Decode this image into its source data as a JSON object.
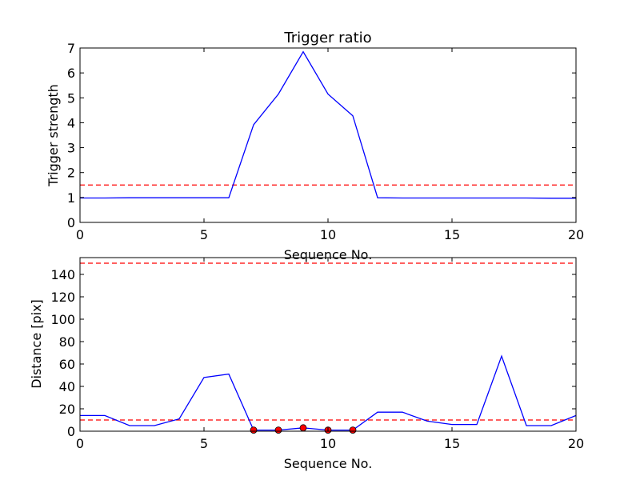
{
  "chart_data": [
    {
      "type": "line",
      "title": "Trigger ratio",
      "xlabel": "Sequence No.",
      "ylabel": "Trigger strength",
      "xlim": [
        0,
        20
      ],
      "ylim": [
        0,
        7
      ],
      "xticks": [
        0,
        5,
        10,
        15,
        20
      ],
      "yticks": [
        0,
        1,
        2,
        3,
        4,
        5,
        6,
        7
      ],
      "grid": false,
      "series": [
        {
          "color": "#0000ff",
          "style": "solid",
          "x": [
            0,
            1,
            2,
            3,
            4,
            5,
            6,
            7,
            8,
            9,
            10,
            11,
            12,
            13,
            14,
            15,
            16,
            17,
            18,
            19,
            20
          ],
          "y": [
            0.98,
            0.98,
            0.99,
            0.99,
            0.99,
            0.99,
            0.99,
            3.92,
            5.15,
            6.85,
            5.15,
            4.28,
            0.99,
            0.98,
            0.98,
            0.98,
            0.98,
            0.98,
            0.98,
            0.97,
            0.97
          ]
        }
      ],
      "hlines": [
        {
          "y": 1.5,
          "color": "#ff0000",
          "style": "dashed"
        }
      ]
    },
    {
      "type": "line",
      "title": "",
      "xlabel": "Sequence No.",
      "ylabel": "Distance [pix]",
      "xlim": [
        0,
        20
      ],
      "ylim": [
        0,
        155
      ],
      "xticks": [
        0,
        5,
        10,
        15,
        20
      ],
      "yticks": [
        0,
        20,
        40,
        60,
        80,
        100,
        120,
        140
      ],
      "grid": false,
      "series": [
        {
          "color": "#0000ff",
          "style": "solid",
          "x": [
            0,
            1,
            2,
            3,
            4,
            5,
            6,
            7,
            8,
            9,
            10,
            11,
            12,
            13,
            14,
            15,
            16,
            17,
            18,
            19,
            20
          ],
          "y": [
            14,
            14,
            5,
            5,
            11,
            48,
            51,
            1,
            1,
            3,
            1,
            1,
            17,
            17,
            9,
            6,
            6,
            67,
            5,
            5,
            14
          ]
        }
      ],
      "markers": {
        "color": "#ff0000",
        "x": [
          7,
          8,
          9,
          10,
          11
        ],
        "y": [
          1,
          1,
          3,
          1,
          1
        ]
      },
      "hlines": [
        {
          "y": 10,
          "color": "#ff0000",
          "style": "dashed"
        },
        {
          "y": 150,
          "color": "#ff0000",
          "style": "dashed"
        }
      ]
    }
  ]
}
